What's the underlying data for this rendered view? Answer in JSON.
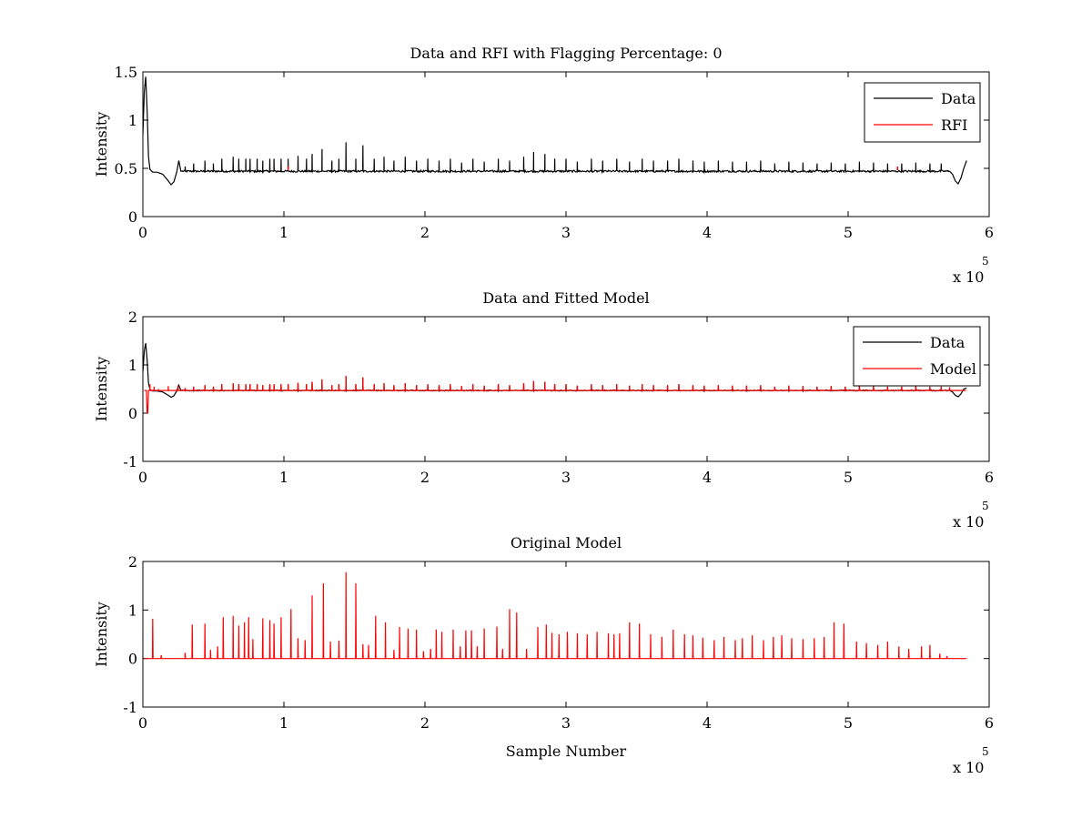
{
  "chart_data": [
    {
      "type": "line",
      "title": "Data and RFI with Flagging Percentage: 0",
      "xlabel": "",
      "ylabel": "Intensity",
      "xlim": [
        0,
        600000
      ],
      "ylim": [
        0,
        1.5
      ],
      "xticks": [
        0,
        1,
        2,
        3,
        4,
        5,
        6
      ],
      "yticks": [
        0,
        0.5,
        1,
        1.5
      ],
      "x_multiplier": "x 10",
      "x_multiplier_exp": "5",
      "grid": false,
      "legend": "top-right",
      "baseline": 0.47,
      "series": [
        {
          "name": "Data",
          "color": "#000000",
          "start_peak": 1.45,
          "dip_min": 0.33,
          "end_value": 0.58,
          "spikes_x": [
            5000,
            8000,
            11000,
            18000,
            25000,
            30000,
            36000,
            44000,
            50000,
            56000,
            64000,
            68000,
            73000,
            76000,
            81000,
            85000,
            90000,
            93000,
            98000,
            103000,
            110000,
            116000,
            120000,
            127000,
            134000,
            139000,
            144000,
            151000,
            156000,
            164000,
            171000,
            178000,
            186000,
            194000,
            202000,
            210000,
            218000,
            226000,
            234000,
            242000,
            252000,
            260000,
            270000,
            277000,
            285000,
            292000,
            300000,
            308000,
            318000,
            326000,
            336000,
            345000,
            354000,
            362000,
            372000,
            380000,
            390000,
            398000,
            408000,
            418000,
            428000,
            438000,
            448000,
            458000,
            468000,
            478000,
            488000,
            498000,
            508000,
            518000,
            528000,
            538000,
            548000,
            558000,
            566000,
            572000
          ],
          "spikes_y": [
            0.6,
            0.55,
            0.5,
            0.56,
            0.58,
            0.52,
            0.55,
            0.58,
            0.55,
            0.6,
            0.62,
            0.6,
            0.6,
            0.6,
            0.6,
            0.58,
            0.6,
            0.6,
            0.6,
            0.6,
            0.63,
            0.6,
            0.65,
            0.7,
            0.58,
            0.6,
            0.77,
            0.6,
            0.74,
            0.6,
            0.62,
            0.58,
            0.62,
            0.58,
            0.6,
            0.58,
            0.6,
            0.56,
            0.6,
            0.57,
            0.6,
            0.58,
            0.62,
            0.67,
            0.65,
            0.6,
            0.6,
            0.57,
            0.6,
            0.58,
            0.6,
            0.57,
            0.6,
            0.58,
            0.58,
            0.6,
            0.58,
            0.57,
            0.58,
            0.57,
            0.57,
            0.58,
            0.55,
            0.57,
            0.56,
            0.55,
            0.56,
            0.55,
            0.57,
            0.56,
            0.55,
            0.55,
            0.56,
            0.55,
            0.55,
            0.54
          ]
        },
        {
          "name": "RFI",
          "color": "#ff0000",
          "points_x": [
            103000,
            535000
          ],
          "points_y": [
            0.5,
            0.5
          ]
        }
      ]
    },
    {
      "type": "line",
      "title": "Data and Fitted Model",
      "xlabel": "",
      "ylabel": "Intensity",
      "xlim": [
        0,
        600000
      ],
      "ylim": [
        -1,
        2
      ],
      "xticks": [
        0,
        1,
        2,
        3,
        4,
        5,
        6
      ],
      "yticks": [
        -1,
        0,
        1,
        2
      ],
      "x_multiplier": "x 10",
      "x_multiplier_exp": "5",
      "grid": false,
      "legend": "top-right",
      "baseline": 0.47,
      "series": [
        {
          "name": "Data",
          "color": "#000000",
          "start_peak": 1.45,
          "dip_min": 0.33,
          "end_value": 0.52
        },
        {
          "name": "Model",
          "color": "#ff0000",
          "start_dip_min": 0.0,
          "baseline": 0.47
        }
      ]
    },
    {
      "type": "line",
      "title": "Original Model",
      "xlabel": "Sample Number",
      "ylabel": "Intensity",
      "xlim": [
        0,
        600000
      ],
      "ylim": [
        -1,
        2
      ],
      "xticks": [
        0,
        1,
        2,
        3,
        4,
        5,
        6
      ],
      "yticks": [
        -1,
        0,
        1,
        2
      ],
      "x_multiplier": "x 10",
      "x_multiplier_exp": "5",
      "grid": false,
      "legend": "none",
      "series": [
        {
          "name": "Original Model",
          "color": "#ff0000",
          "baseline": 0.0,
          "spikes_x": [
            7000,
            13000,
            30000,
            35000,
            44000,
            48000,
            53000,
            57000,
            64000,
            68000,
            72000,
            75000,
            78000,
            85000,
            90000,
            93000,
            98000,
            105000,
            110000,
            115000,
            120000,
            128000,
            133000,
            139000,
            144000,
            151000,
            156000,
            160000,
            165000,
            172000,
            178000,
            182000,
            188000,
            194000,
            199000,
            204000,
            208000,
            212000,
            220000,
            225000,
            229000,
            233000,
            237000,
            242000,
            251000,
            255000,
            260000,
            265000,
            272000,
            280000,
            286000,
            290000,
            295000,
            301000,
            308000,
            315000,
            322000,
            330000,
            334000,
            338000,
            345000,
            352000,
            360000,
            368000,
            376000,
            384000,
            390000,
            397000,
            405000,
            412000,
            420000,
            425000,
            432000,
            440000,
            447000,
            453000,
            460000,
            468000,
            476000,
            483000,
            490000,
            497000,
            506000,
            513000,
            521000,
            528000,
            536000,
            543000,
            552000,
            558000,
            565000,
            570000
          ],
          "spikes_y": [
            0.82,
            0.07,
            0.12,
            0.7,
            0.72,
            0.18,
            0.25,
            0.85,
            0.88,
            0.68,
            0.75,
            0.85,
            0.4,
            0.83,
            0.79,
            0.72,
            0.85,
            1.02,
            0.42,
            0.38,
            1.3,
            1.55,
            0.35,
            0.37,
            1.78,
            1.55,
            0.3,
            0.28,
            0.88,
            0.75,
            0.18,
            0.65,
            0.62,
            0.6,
            0.15,
            0.2,
            0.6,
            0.55,
            0.6,
            0.25,
            0.58,
            0.58,
            0.25,
            0.62,
            0.66,
            0.2,
            1.02,
            0.95,
            0.2,
            0.65,
            0.7,
            0.53,
            0.5,
            0.55,
            0.52,
            0.5,
            0.55,
            0.52,
            0.5,
            0.52,
            0.75,
            0.72,
            0.5,
            0.45,
            0.6,
            0.5,
            0.48,
            0.43,
            0.38,
            0.45,
            0.38,
            0.42,
            0.48,
            0.38,
            0.45,
            0.48,
            0.42,
            0.4,
            0.42,
            0.45,
            0.75,
            0.72,
            0.35,
            0.32,
            0.28,
            0.35,
            0.25,
            0.2,
            0.25,
            0.28,
            0.1,
            0.05
          ]
        }
      ]
    }
  ]
}
